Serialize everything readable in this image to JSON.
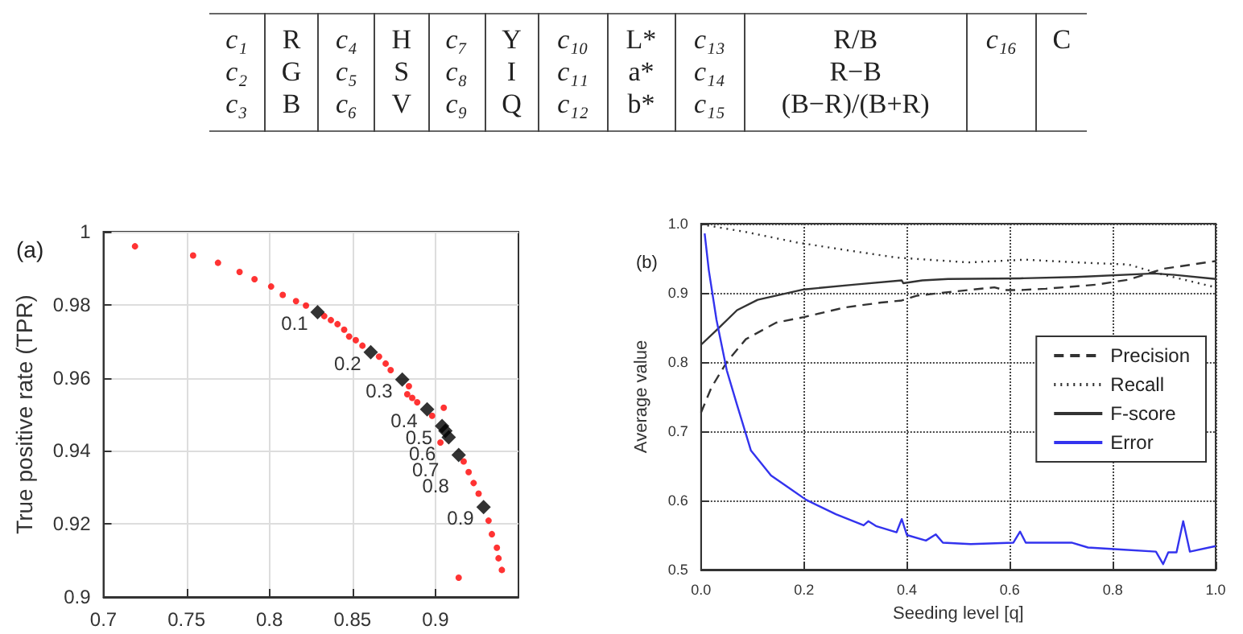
{
  "chart_data": [
    {
      "type": "other",
      "cell_labels": [
        [
          "c₁",
          "R",
          "c₄",
          "H",
          "c₇",
          "Y",
          "c₁₀",
          "L*",
          "c₁₃",
          "R/B",
          "c₁₆",
          "C"
        ],
        [
          "c₂",
          "G",
          "c₅",
          "S",
          "c₈",
          "I",
          "c₁₁",
          "a*",
          "c₁₄",
          "R−B",
          null,
          null
        ],
        [
          "c₃",
          "B",
          "c₆",
          "V",
          "c₉",
          "Q",
          "c₁₂",
          "b*",
          "c₁₅",
          "(B−R)/(B+R)",
          null,
          null
        ]
      ]
    },
    {
      "type": "scatter",
      "title": "(a)",
      "ylabel": "True positive rate (TPR)",
      "xlim": [
        0.7,
        0.95
      ],
      "xticks": [
        0.7,
        0.75,
        0.8,
        0.85,
        0.9
      ],
      "ylim": [
        0.9,
        1
      ],
      "yticks": [
        0.9,
        0.92,
        0.94,
        0.96,
        0.98,
        1
      ],
      "grid": true,
      "marker": "circle",
      "series": [
        {
          "color": "#ff0000",
          "x": [
            0.719,
            0.754,
            0.769,
            0.782,
            0.791,
            0.801,
            0.808,
            0.816,
            0.822,
            0.833,
            0.837,
            0.841,
            0.845,
            0.848,
            0.852,
            0.856,
            0.866,
            0.87,
            0.873,
            0.884,
            0.883,
            0.886,
            0.889,
            0.898,
            0.905,
            0.903,
            0.917,
            0.92,
            0.923,
            0.926,
            0.932,
            0.934,
            0.937,
            0.938,
            0.94,
            0.914
          ],
          "values": [
            0.996,
            0.9935,
            0.9915,
            0.989,
            0.987,
            0.985,
            0.9827,
            0.981,
            0.9798,
            0.9769,
            0.9758,
            0.9747,
            0.9732,
            0.9713,
            0.9703,
            0.9688,
            0.9658,
            0.9639,
            0.9621,
            0.9577,
            0.9555,
            0.9545,
            0.9533,
            0.9496,
            0.9518,
            0.9423,
            0.9371,
            0.9342,
            0.9312,
            0.9283,
            0.9209,
            0.9172,
            0.9135,
            0.9106,
            0.9074,
            0.9053
          ]
        },
        {
          "color": "#000000",
          "marker": "diamond",
          "x": [
            0.829,
            0.861,
            0.88,
            0.895,
            0.904,
            0.906,
            0.908,
            0.914,
            0.929
          ],
          "values": [
            0.978,
            0.967,
            0.9595,
            0.9514,
            0.9468,
            0.9455,
            0.9437,
            0.9389,
            0.9246
          ]
        }
      ],
      "annotations": [
        {
          "text": "0.1",
          "x": 0.829,
          "y": 0.978
        },
        {
          "text": "0.2",
          "x": 0.861,
          "y": 0.967
        },
        {
          "text": "0.3",
          "x": 0.88,
          "y": 0.9595
        },
        {
          "text": "0.4",
          "x": 0.895,
          "y": 0.9514
        },
        {
          "text": "0.5",
          "x": 0.904,
          "y": 0.9468
        },
        {
          "text": "0.6",
          "x": 0.906,
          "y": 0.9455
        },
        {
          "text": "0.7",
          "x": 0.908,
          "y": 0.9437
        },
        {
          "text": "0.8",
          "x": 0.914,
          "y": 0.9389
        },
        {
          "text": "0.9",
          "x": 0.929,
          "y": 0.9246
        }
      ]
    },
    {
      "type": "line",
      "title": "(b)",
      "xlabel": "Seeding level [q]",
      "ylabel": "Average value",
      "xlim": [
        0,
        1
      ],
      "xticks": [
        {
          "value": 0,
          "label": "0.0"
        },
        0.2,
        0.4,
        0.6,
        0.8,
        {
          "value": 1,
          "label": "1.0"
        }
      ],
      "ylim": [
        0.5,
        1
      ],
      "yticks": [
        0.5,
        0.6,
        0.7,
        0.8,
        0.9,
        {
          "value": 1,
          "label": "1.0"
        }
      ],
      "grid": true,
      "legend": "right",
      "marker": "none",
      "series": [
        {
          "name": "Precision",
          "color": "#333333",
          "line_style": "dashed",
          "x": [
            0,
            0.02,
            0.05,
            0.087,
            0.146,
            0.2,
            0.28,
            0.35,
            0.39,
            0.42,
            0.48,
            0.57,
            0.59,
            0.62,
            0.67,
            0.77,
            0.83,
            0.9,
            1
          ],
          "values": [
            0.727,
            0.763,
            0.8,
            0.833,
            0.857,
            0.865,
            0.879,
            0.886,
            0.889,
            0.896,
            0.901,
            0.908,
            0.904,
            0.904,
            0.906,
            0.912,
            0.919,
            0.935,
            0.946
          ]
        },
        {
          "name": "Recall",
          "color": "#333333",
          "line_style": "dotted",
          "x": [
            0,
            0.087,
            0.185,
            0.28,
            0.38,
            0.52,
            0.63,
            0.73,
            0.83,
            0.9,
            1
          ],
          "values": [
            0.999,
            0.988,
            0.973,
            0.962,
            0.951,
            0.944,
            0.948,
            0.944,
            0.941,
            0.926,
            0.908
          ]
        },
        {
          "name": "F-score",
          "color": "#333333",
          "line_style": "solid",
          "x": [
            0,
            0.03,
            0.07,
            0.11,
            0.2,
            0.3,
            0.39,
            0.393,
            0.43,
            0.48,
            0.62,
            0.73,
            0.88,
            0.92,
            1
          ],
          "values": [
            0.825,
            0.846,
            0.875,
            0.89,
            0.905,
            0.912,
            0.918,
            0.914,
            0.918,
            0.92,
            0.921,
            0.923,
            0.928,
            0.926,
            0.92
          ]
        },
        {
          "name": "Error",
          "color": "#3333ee",
          "line_style": "solid",
          "x": [
            0.007,
            0.015,
            0.03,
            0.05,
            0.07,
            0.097,
            0.136,
            0.175,
            0.204,
            0.262,
            0.316,
            0.325,
            0.34,
            0.38,
            0.39,
            0.4,
            0.437,
            0.456,
            0.47,
            0.524,
            0.607,
            0.62,
            0.631,
            0.72,
            0.752,
            0.816,
            0.884,
            0.898,
            0.908,
            0.924,
            0.937,
            0.95,
            1
          ],
          "values": [
            0.986,
            0.933,
            0.861,
            0.788,
            0.738,
            0.672,
            0.636,
            0.616,
            0.601,
            0.58,
            0.564,
            0.57,
            0.563,
            0.554,
            0.573,
            0.55,
            0.542,
            0.551,
            0.539,
            0.537,
            0.539,
            0.555,
            0.539,
            0.539,
            0.532,
            0.529,
            0.526,
            0.508,
            0.525,
            0.525,
            0.57,
            0.526,
            0.534
          ]
        }
      ]
    }
  ]
}
